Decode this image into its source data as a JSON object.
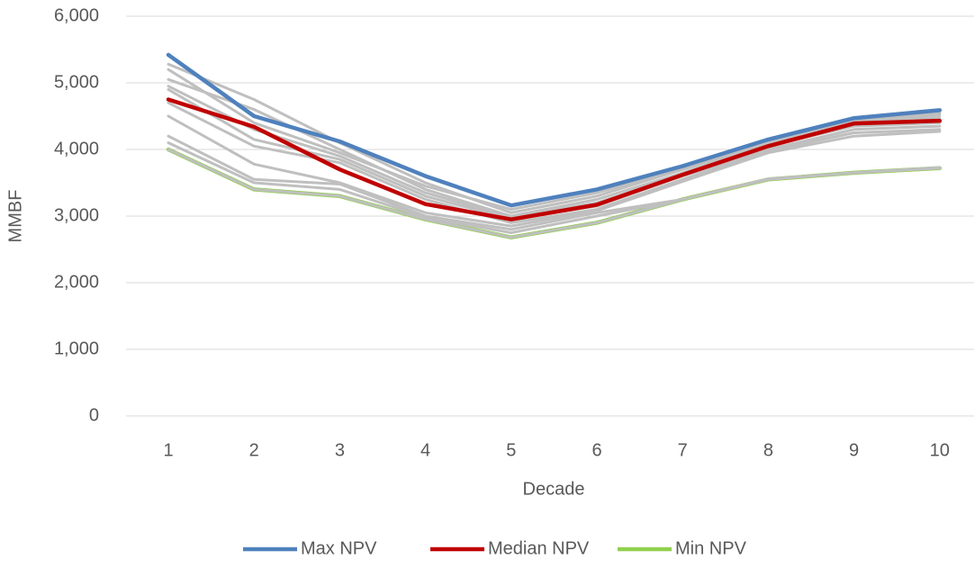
{
  "chart_data": {
    "type": "line",
    "x_label": "Decade",
    "y_label": "MMBF",
    "categories": [
      1,
      2,
      3,
      4,
      5,
      6,
      7,
      8,
      9,
      10
    ],
    "ylim": [
      0,
      6000
    ],
    "yticks": [
      0,
      {
        "value": 1000,
        "label": "1,000"
      },
      {
        "value": 2000,
        "label": "2,000"
      },
      {
        "value": 3000,
        "label": "3,000"
      },
      {
        "value": 4000,
        "label": "4,000"
      },
      {
        "value": 5000,
        "label": "5,000"
      },
      {
        "value": 6000,
        "label": "6,000"
      }
    ],
    "grid": true,
    "legend": "bottom",
    "series": [
      {
        "name": "Min NPV",
        "color": "#92d050",
        "values": [
          4000,
          3400,
          3300,
          2950,
          2680,
          2900,
          3250,
          3550,
          3650,
          3720
        ]
      },
      {
        "color": "#bfbfbf",
        "values": [
          5280,
          4750,
          4100,
          3500,
          3050,
          3300,
          3700,
          4100,
          4420,
          4520
        ]
      },
      {
        "color": "#bfbfbf",
        "values": [
          5050,
          4600,
          4000,
          3400,
          3000,
          3250,
          3650,
          4080,
          4400,
          4480
        ]
      },
      {
        "color": "#bfbfbf",
        "values": [
          4950,
          4300,
          3900,
          3350,
          2980,
          3200,
          3620,
          4050,
          4350,
          4400
        ]
      },
      {
        "color": "#bfbfbf",
        "values": [
          4900,
          4150,
          3850,
          3300,
          2950,
          3150,
          3600,
          4000,
          4300,
          4350
        ]
      },
      {
        "color": "#bfbfbf",
        "values": [
          4700,
          4050,
          3800,
          3250,
          2900,
          3100,
          3550,
          3980,
          4250,
          4300
        ]
      },
      {
        "color": "#bfbfbf",
        "values": [
          4500,
          3780,
          3500,
          3050,
          2850,
          3080,
          3520,
          3950,
          4200,
          4270
        ]
      },
      {
        "color": "#bfbfbf",
        "values": [
          4200,
          3550,
          3480,
          3000,
          2800,
          3050,
          3250,
          3560,
          3650,
          3730
        ]
      },
      {
        "color": "#bfbfbf",
        "values": [
          4100,
          3500,
          3400,
          2980,
          2750,
          3000,
          3250,
          3550,
          3650,
          3720
        ]
      },
      {
        "color": "#bfbfbf",
        "values": [
          4000,
          3400,
          3300,
          2950,
          2680,
          2900,
          3250,
          3550,
          3650,
          3720
        ]
      },
      {
        "color": "#bfbfbf",
        "values": [
          5200,
          4400,
          3950,
          3450,
          3100,
          3350,
          3700,
          4120,
          4440,
          4550
        ]
      },
      {
        "name": "Max NPV",
        "color": "#4f81bd",
        "values": [
          5420,
          4500,
          4120,
          3600,
          3160,
          3400,
          3750,
          4150,
          4470,
          4590
        ]
      },
      {
        "name": "Median NPV",
        "color": "#c00000",
        "values": [
          4750,
          4340,
          3700,
          3180,
          2950,
          3170,
          3620,
          4050,
          4390,
          4430
        ]
      }
    ]
  }
}
